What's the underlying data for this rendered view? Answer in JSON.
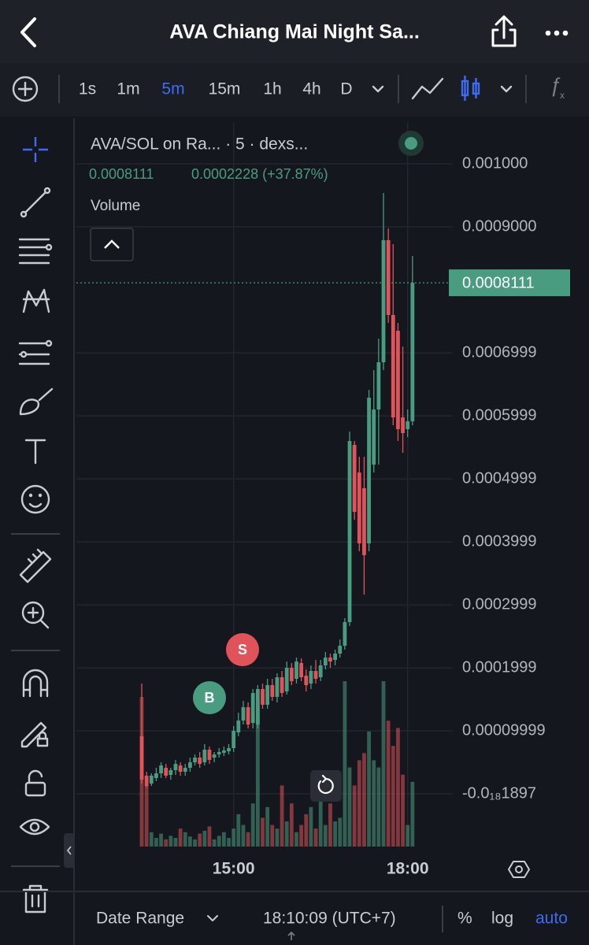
{
  "header": {
    "title": "AVA Chiang Mai Night Sa..."
  },
  "toolbar": {
    "intervals": [
      "1s",
      "1m",
      "5m",
      "15m",
      "1h",
      "4h",
      "D"
    ],
    "active_interval": 2
  },
  "legend": {
    "symbol": "AVA/SOL on Ra... · 5 · dexs...",
    "price": "0.0008111",
    "change": "0.0002228 (+37.87%)",
    "volume": "Volume"
  },
  "chart_data": {
    "type": "candlestick",
    "up_color": "#4a9c80",
    "down_color": "#e0535a",
    "ylim": [
      -8.375e-05,
      0.00106625
    ],
    "yticks": [
      {
        "value": 0.001,
        "label": "0.001000"
      },
      {
        "value": 0.0009,
        "label": "0.0009000"
      },
      0.0006999,
      0.0005999,
      0.0004999,
      0.0003999,
      0.0002999,
      0.0001999,
      9.999e-05,
      {
        "value": -1.897e-19,
        "label": "-0.0₁₈1897"
      }
    ],
    "last_price": 0.0008111,
    "categories": [
      null,
      null,
      null,
      null,
      null,
      null,
      null,
      null,
      null,
      null,
      null,
      null,
      null,
      null,
      null,
      null,
      null,
      null,
      null,
      "15:00",
      null,
      null,
      null,
      null,
      null,
      null,
      null,
      null,
      null,
      null,
      null,
      null,
      null,
      null,
      null,
      null,
      null,
      null,
      null,
      null,
      null,
      null,
      null,
      null,
      null,
      null,
      null,
      null,
      null,
      null,
      null,
      null,
      null,
      null,
      null,
      "18:00",
      null
    ],
    "open": [
      9.13e-05,
      2.88e-05,
      1.63e-05,
      2.5e-05,
      3.25e-05,
      4.13e-05,
      3e-05,
      3.75e-05,
      4.5e-05,
      3.5e-05,
      4.13e-05,
      5e-05,
      5.75e-05,
      5e-05,
      7e-05,
      5.75e-05,
      6.25e-05,
      6.5e-05,
      6.75e-05,
      7.25e-05,
      9.75e-05,
      0.0001163,
      0.0001375,
      0.0001125,
      0.00011,
      0.0001663,
      0.0001413,
      0.0001725,
      0.0001538,
      0.000185,
      0.0001625,
      0.0002,
      0.0001825,
      0.0002075,
      0.0001875,
      0.000175,
      0.000195,
      0.000185,
      0.0002038,
      0.0002163,
      0.0002125,
      0.0002225,
      0.000235,
      0.0002725,
      0.0005538,
      0.00051,
      0.000485,
      0.0003975,
      0.0005225,
      0.00061,
      0.000685,
      0.0008788,
      0.00076,
      0.000735,
      0.0005975,
      0.0005788,
      0.0005913
    ],
    "high": [
      0.000175,
      3.5e-05,
      3.25e-05,
      4.13e-05,
      5e-05,
      4.75e-05,
      4.13e-05,
      5.38e-05,
      5e-05,
      4.75e-05,
      5.75e-05,
      6.25e-05,
      6.63e-05,
      7.88e-05,
      7.5e-05,
      6.63e-05,
      7.25e-05,
      7.5e-05,
      7.88e-05,
      0.0001075,
      0.0001288,
      0.0001475,
      0.000145,
      0.0001663,
      0.0001725,
      0.000175,
      0.0001825,
      0.0001825,
      0.0001913,
      0.000195,
      0.00021,
      0.0002075,
      0.0002163,
      0.000215,
      0.0001975,
      0.0002038,
      0.0002125,
      0.0002125,
      0.000225,
      0.0002225,
      0.0002288,
      0.000245,
      0.0002788,
      0.000575,
      0.00056,
      0.000535,
      0.000535,
      0.0006413,
      0.0006725,
      0.0007225,
      0.0009538,
      0.0008975,
      0.0008725,
      0.0007475,
      0.00071,
      0.00061,
      0.0008538
    ],
    "low": [
      1.63e-05,
      1e-05,
      1.25e-05,
      2e-05,
      2.5e-05,
      2.5e-05,
      2.25e-05,
      3e-05,
      2.88e-05,
      2.88e-05,
      3.5e-05,
      4.5e-05,
      4.13e-05,
      4.5e-05,
      4.75e-05,
      5e-05,
      5.75e-05,
      6e-05,
      6.25e-05,
      6.63e-05,
      9.13e-05,
      0.00011,
      0.0001038,
      0.0001038,
      0.0001038,
      0.000135,
      0.000135,
      0.0001475,
      0.000145,
      0.0001538,
      0.0001575,
      0.0001725,
      0.000175,
      0.0001788,
      0.0001625,
      0.0001663,
      0.000175,
      0.0001788,
      0.0001975,
      0.0002,
      0.0002038,
      0.0002163,
      0.0002288,
      0.0002663,
      0.000435,
      0.000385,
      0.0003163,
      0.000385,
      0.00051,
      0.0005225,
      0.0006725,
      0.0007475,
      0.000585,
      0.00056,
      0.0005413,
      0.0005663,
      0.000585
    ],
    "close": [
      2.25e-05,
      1.25e-05,
      2.88e-05,
      3.25e-05,
      4.5e-05,
      2.88e-05,
      3.75e-05,
      4.75e-05,
      3.5e-05,
      4.13e-05,
      5e-05,
      5.75e-05,
      4.75e-05,
      7e-05,
      5.38e-05,
      6.25e-05,
      6.63e-05,
      6.88e-05,
      7.25e-05,
      0.0001,
      0.0001163,
      0.0001375,
      0.00011,
      0.00016,
      0.0001663,
      0.0001413,
      0.0001725,
      0.0001538,
      0.000185,
      0.00016,
      0.0002,
      0.0001788,
      0.00021,
      0.000185,
      0.0001725,
      0.000195,
      0.0001825,
      0.0002038,
      0.0002163,
      0.00021,
      0.0002225,
      0.000235,
      0.0002725,
      0.00056,
      0.0004475,
      0.0003975,
      0.0003788,
      0.0006288,
      0.00061,
      0.000685,
      0.0008788,
      0.00076,
      0.0005975,
      0.0005788,
      0.0005725,
      0.0005913,
      0.0008111
    ],
    "volume": [
      208,
      85,
      20,
      12,
      18,
      10,
      15,
      12,
      25,
      20,
      14,
      10,
      18,
      22,
      28,
      10,
      15,
      20,
      12,
      25,
      45,
      30,
      20,
      60,
      205,
      40,
      55,
      30,
      25,
      85,
      35,
      60,
      20,
      30,
      45,
      55,
      25,
      75,
      30,
      60,
      35,
      40,
      230,
      110,
      85,
      120,
      130,
      160,
      120,
      110,
      230,
      175,
      140,
      165,
      100,
      30,
      90
    ],
    "markers": [
      {
        "label": "B"
      },
      {
        "label": "S"
      }
    ]
  },
  "footer": {
    "date_range": "Date Range",
    "time": "18:10:09 (UTC+7)",
    "percent": "%",
    "log": "log",
    "auto": "auto"
  }
}
